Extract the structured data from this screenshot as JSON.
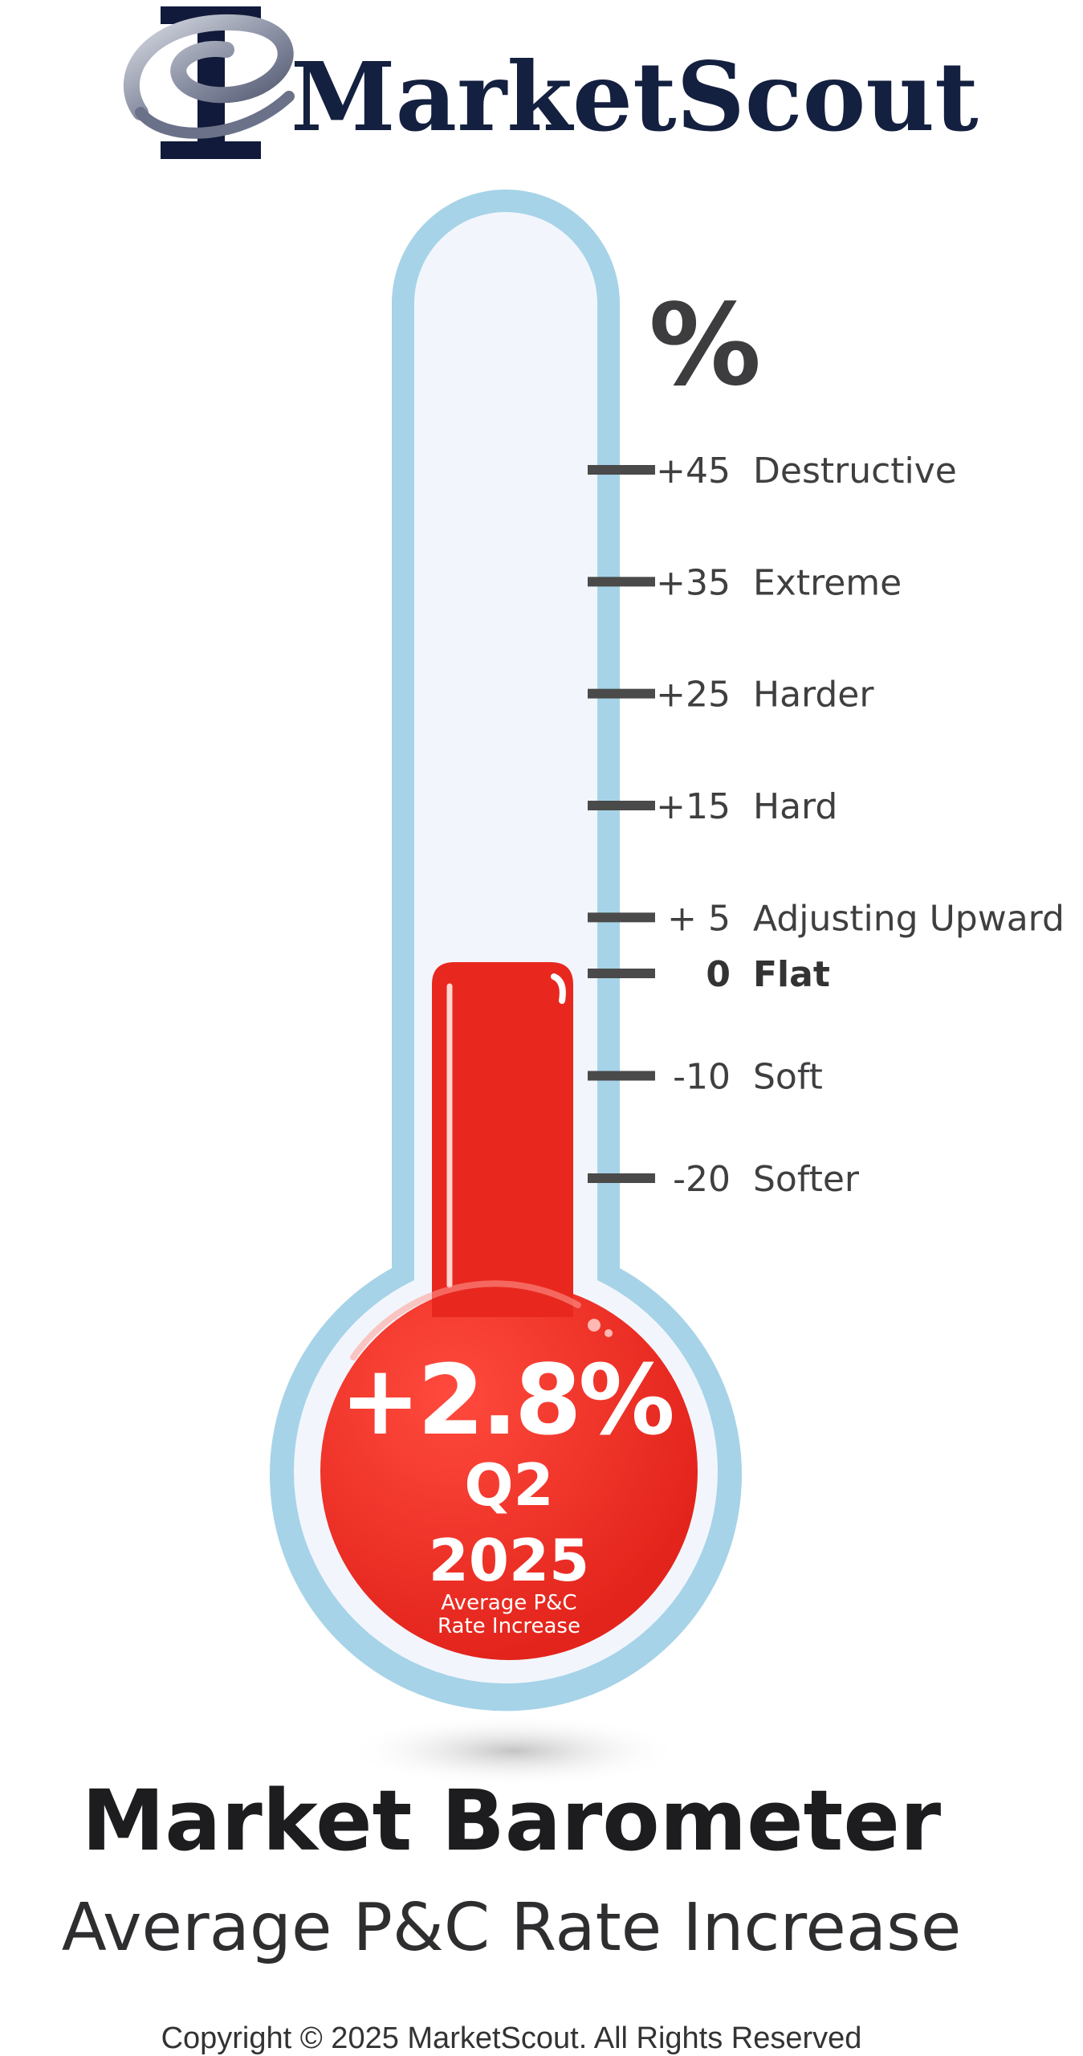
{
  "logo": {
    "wordmark": "MarketScout"
  },
  "chart_data": {
    "type": "thermometer",
    "unit_label": "%",
    "ylim": [
      -20,
      45
    ],
    "ticks": [
      {
        "value": 45,
        "label": "+45",
        "descriptor": "Destructive",
        "bold": false
      },
      {
        "value": 35,
        "label": "+35",
        "descriptor": "Extreme",
        "bold": false
      },
      {
        "value": 25,
        "label": "+25",
        "descriptor": "Harder",
        "bold": false
      },
      {
        "value": 15,
        "label": "+15",
        "descriptor": "Hard",
        "bold": false
      },
      {
        "value": 5,
        "label": "+  5",
        "descriptor": "Adjusting Upward",
        "bold": false
      },
      {
        "value": 0,
        "label": "0",
        "descriptor": "Flat",
        "bold": true
      },
      {
        "value": -10,
        "label": "-10",
        "descriptor": "Soft",
        "bold": false
      },
      {
        "value": -20,
        "label": "-20",
        "descriptor": "Softer",
        "bold": false
      }
    ],
    "value": 2.8,
    "value_label": "+2.8%",
    "period_quarter": "Q2",
    "period_year": "2025",
    "caption_line1": "Average P&C",
    "caption_line2": "Rate Increase",
    "colors": {
      "outline": "#a6d3e8",
      "glass": "#eef4fb",
      "mercury": "#e8281f",
      "tick": "#4a4a4a"
    }
  },
  "title": "Market Barometer",
  "subtitle": "Average P&C Rate Increase",
  "copyright": "Copyright © 2025 MarketScout. All Rights Reserved"
}
